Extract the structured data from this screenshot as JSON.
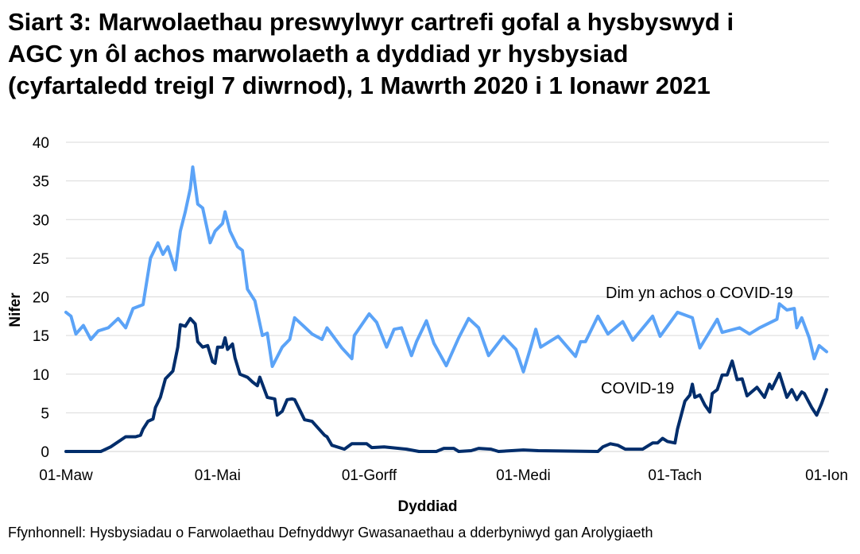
{
  "chart_data": {
    "type": "line",
    "title_lines": [
      "Siart 3: Marwolaethau preswylwyr cartrefi gofal a hysbyswyd i",
      "AGC yn ôl achos marwolaeth a dyddiad yr hysbysiad",
      "(cyfartaledd treigl 7 diwrnod), 1 Mawrth 2020 i 1 Ionawr 2021"
    ],
    "xlabel": "Dyddiad",
    "ylabel": "Nifer",
    "xlim": [
      "2020-03-01",
      "2021-01-01"
    ],
    "ylim": [
      0,
      40
    ],
    "yticks": [
      0,
      5,
      10,
      15,
      20,
      25,
      30,
      35,
      40
    ],
    "xticks": [
      {
        "date": "2020-03-01",
        "label": "01-Maw"
      },
      {
        "date": "2020-05-01",
        "label": "01-Mai"
      },
      {
        "date": "2020-07-01",
        "label": "01-Gorff"
      },
      {
        "date": "2020-09-01",
        "label": "01-Medi"
      },
      {
        "date": "2020-11-01",
        "label": "01-Tach"
      },
      {
        "date": "2021-01-01",
        "label": "01-Ion"
      }
    ],
    "grid": "horizontal",
    "legend": "direct labels",
    "series": [
      {
        "name": "Dim yn achos o COVID-19",
        "color": "#5BA3F7",
        "points": [
          [
            "2020-03-01",
            18
          ],
          [
            "2020-03-03",
            17.5
          ],
          [
            "2020-03-05",
            15.2
          ],
          [
            "2020-03-08",
            16.3
          ],
          [
            "2020-03-11",
            14.5
          ],
          [
            "2020-03-14",
            15.6
          ],
          [
            "2020-03-18",
            16
          ],
          [
            "2020-03-22",
            17.2
          ],
          [
            "2020-03-25",
            16
          ],
          [
            "2020-03-28",
            18.5
          ],
          [
            "2020-04-01",
            19
          ],
          [
            "2020-04-04",
            25
          ],
          [
            "2020-04-07",
            27
          ],
          [
            "2020-04-09",
            25.5
          ],
          [
            "2020-04-11",
            26.5
          ],
          [
            "2020-04-14",
            23.5
          ],
          [
            "2020-04-16",
            28.5
          ],
          [
            "2020-04-18",
            31
          ],
          [
            "2020-04-20",
            34
          ],
          [
            "2020-04-21",
            36.8
          ],
          [
            "2020-04-23",
            32
          ],
          [
            "2020-04-25",
            31.5
          ],
          [
            "2020-04-28",
            27
          ],
          [
            "2020-04-30",
            28.5
          ],
          [
            "2020-05-03",
            29.5
          ],
          [
            "2020-05-04",
            31
          ],
          [
            "2020-05-06",
            28.5
          ],
          [
            "2020-05-09",
            26.5
          ],
          [
            "2020-05-11",
            26
          ],
          [
            "2020-05-13",
            21
          ],
          [
            "2020-05-16",
            19.5
          ],
          [
            "2020-05-19",
            15
          ],
          [
            "2020-05-21",
            15.3
          ],
          [
            "2020-05-23",
            11
          ],
          [
            "2020-05-27",
            13.5
          ],
          [
            "2020-05-30",
            14.5
          ],
          [
            "2020-06-01",
            17.3
          ],
          [
            "2020-06-08",
            15.2
          ],
          [
            "2020-06-12",
            14.5
          ],
          [
            "2020-06-14",
            16
          ],
          [
            "2020-06-20",
            13.4
          ],
          [
            "2020-06-24",
            12
          ],
          [
            "2020-06-25",
            15
          ],
          [
            "2020-07-01",
            17.8
          ],
          [
            "2020-07-04",
            16.7
          ],
          [
            "2020-07-08",
            13.5
          ],
          [
            "2020-07-11",
            15.8
          ],
          [
            "2020-07-14",
            16
          ],
          [
            "2020-07-18",
            12.4
          ],
          [
            "2020-07-20",
            14.2
          ],
          [
            "2020-07-24",
            16.9
          ],
          [
            "2020-07-27",
            14
          ],
          [
            "2020-08-01",
            11.1
          ],
          [
            "2020-08-06",
            14.7
          ],
          [
            "2020-08-10",
            17.2
          ],
          [
            "2020-08-14",
            16
          ],
          [
            "2020-08-18",
            12.4
          ],
          [
            "2020-08-24",
            14.9
          ],
          [
            "2020-08-29",
            13.2
          ],
          [
            "2020-09-01",
            10.3
          ],
          [
            "2020-09-04",
            13.5
          ],
          [
            "2020-09-06",
            15.8
          ],
          [
            "2020-09-08",
            13.5
          ],
          [
            "2020-09-15",
            14.9
          ],
          [
            "2020-09-22",
            12.3
          ],
          [
            "2020-09-24",
            14.2
          ],
          [
            "2020-09-26",
            14.2
          ],
          [
            "2020-10-01",
            17.5
          ],
          [
            "2020-10-05",
            15.2
          ],
          [
            "2020-10-11",
            16.8
          ],
          [
            "2020-10-15",
            14.4
          ],
          [
            "2020-10-23",
            17.5
          ],
          [
            "2020-10-26",
            14.9
          ],
          [
            "2020-11-02",
            18
          ],
          [
            "2020-11-08",
            17.3
          ],
          [
            "2020-11-11",
            13.4
          ],
          [
            "2020-11-18",
            17.1
          ],
          [
            "2020-11-20",
            15.4
          ],
          [
            "2020-11-27",
            16
          ],
          [
            "2020-12-01",
            15.2
          ],
          [
            "2020-12-05",
            16
          ],
          [
            "2020-12-12",
            17.1
          ],
          [
            "2020-12-13",
            19.1
          ],
          [
            "2020-12-16",
            18.3
          ],
          [
            "2020-12-19",
            18.5
          ],
          [
            "2020-12-20",
            16
          ],
          [
            "2020-12-22",
            17.3
          ],
          [
            "2020-12-25",
            14.7
          ],
          [
            "2020-12-27",
            12
          ],
          [
            "2020-12-29",
            13.7
          ],
          [
            "2021-01-01",
            12.9
          ]
        ]
      },
      {
        "name": "COVID-19",
        "color": "#002D6B",
        "points": [
          [
            "2020-03-01",
            0
          ],
          [
            "2020-03-15",
            0
          ],
          [
            "2020-03-19",
            0.6
          ],
          [
            "2020-03-25",
            1.9
          ],
          [
            "2020-03-29",
            1.9
          ],
          [
            "2020-03-31",
            2.1
          ],
          [
            "2020-04-01",
            2.9
          ],
          [
            "2020-04-03",
            3.9
          ],
          [
            "2020-04-05",
            4.2
          ],
          [
            "2020-04-06",
            5.7
          ],
          [
            "2020-04-08",
            7
          ],
          [
            "2020-04-10",
            9.4
          ],
          [
            "2020-04-13",
            10.4
          ],
          [
            "2020-04-15",
            13.5
          ],
          [
            "2020-04-16",
            16.4
          ],
          [
            "2020-04-18",
            16.2
          ],
          [
            "2020-04-20",
            17.2
          ],
          [
            "2020-04-22",
            16.5
          ],
          [
            "2020-04-23",
            14.2
          ],
          [
            "2020-04-25",
            13.5
          ],
          [
            "2020-04-27",
            13.7
          ],
          [
            "2020-04-29",
            11.6
          ],
          [
            "2020-04-30",
            11.4
          ],
          [
            "2020-05-01",
            13.5
          ],
          [
            "2020-05-03",
            13.5
          ],
          [
            "2020-05-04",
            14.7
          ],
          [
            "2020-05-05",
            13.2
          ],
          [
            "2020-05-07",
            13.9
          ],
          [
            "2020-05-08",
            12.1
          ],
          [
            "2020-05-10",
            10
          ],
          [
            "2020-05-13",
            9.6
          ],
          [
            "2020-05-15",
            9
          ],
          [
            "2020-05-17",
            8.5
          ],
          [
            "2020-05-18",
            9.6
          ],
          [
            "2020-05-21",
            7
          ],
          [
            "2020-05-24",
            6.8
          ],
          [
            "2020-05-25",
            4.7
          ],
          [
            "2020-05-27",
            5.2
          ],
          [
            "2020-05-29",
            6.7
          ],
          [
            "2020-05-31",
            6.8
          ],
          [
            "2020-06-01",
            6.7
          ],
          [
            "2020-06-05",
            4.1
          ],
          [
            "2020-06-08",
            3.9
          ],
          [
            "2020-06-13",
            2.1
          ],
          [
            "2020-06-14",
            1.9
          ],
          [
            "2020-06-16",
            0.8
          ],
          [
            "2020-06-21",
            0.3
          ],
          [
            "2020-06-24",
            1.0
          ],
          [
            "2020-06-30",
            1.0
          ],
          [
            "2020-07-02",
            0.5
          ],
          [
            "2020-07-07",
            0.6
          ],
          [
            "2020-07-16",
            0.3
          ],
          [
            "2020-07-21",
            0
          ],
          [
            "2020-07-28",
            0
          ],
          [
            "2020-07-31",
            0.4
          ],
          [
            "2020-08-04",
            0.4
          ],
          [
            "2020-08-06",
            0
          ],
          [
            "2020-08-11",
            0.1
          ],
          [
            "2020-08-14",
            0.4
          ],
          [
            "2020-08-19",
            0.3
          ],
          [
            "2020-08-22",
            0
          ],
          [
            "2020-09-01",
            0.2
          ],
          [
            "2020-09-07",
            0.1
          ],
          [
            "2020-10-01",
            0
          ],
          [
            "2020-10-03",
            0.6
          ],
          [
            "2020-10-06",
            1.0
          ],
          [
            "2020-10-09",
            0.8
          ],
          [
            "2020-10-12",
            0.3
          ],
          [
            "2020-10-19",
            0.3
          ],
          [
            "2020-10-23",
            1.1
          ],
          [
            "2020-10-25",
            1.1
          ],
          [
            "2020-10-27",
            1.7
          ],
          [
            "2020-10-29",
            1.3
          ],
          [
            "2020-11-01",
            1.1
          ],
          [
            "2020-11-02",
            2.9
          ],
          [
            "2020-11-05",
            6.5
          ],
          [
            "2020-11-07",
            7.3
          ],
          [
            "2020-11-08",
            8.7
          ],
          [
            "2020-11-09",
            7
          ],
          [
            "2020-11-11",
            7.3
          ],
          [
            "2020-11-13",
            6
          ],
          [
            "2020-11-15",
            5.1
          ],
          [
            "2020-11-16",
            7.5
          ],
          [
            "2020-11-18",
            8
          ],
          [
            "2020-11-20",
            9.9
          ],
          [
            "2020-11-22",
            9.9
          ],
          [
            "2020-11-24",
            11.7
          ],
          [
            "2020-11-26",
            9.3
          ],
          [
            "2020-11-28",
            9.4
          ],
          [
            "2020-11-30",
            7.2
          ],
          [
            "2020-12-04",
            8.3
          ],
          [
            "2020-12-07",
            7
          ],
          [
            "2020-12-09",
            8.7
          ],
          [
            "2020-12-10",
            8.1
          ],
          [
            "2020-12-13",
            10.1
          ],
          [
            "2020-12-16",
            7
          ],
          [
            "2020-12-18",
            8
          ],
          [
            "2020-12-20",
            6.7
          ],
          [
            "2020-12-22",
            7.7
          ],
          [
            "2020-12-23",
            7.5
          ],
          [
            "2020-12-26",
            5.7
          ],
          [
            "2020-12-28",
            4.7
          ],
          [
            "2020-12-30",
            6.2
          ],
          [
            "2021-01-01",
            8
          ]
        ]
      }
    ]
  },
  "source": "Ffynhonnell: Hysbysiadau o Farwolaethau Defnyddwyr Gwasanaethau a dderbyniwyd gan Arolygiaeth"
}
